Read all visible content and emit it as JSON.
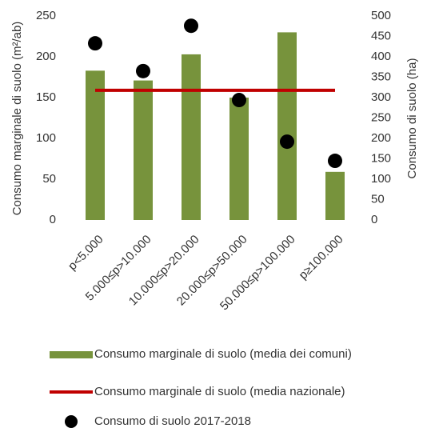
{
  "chart_data": {
    "type": "bar",
    "y_label": "Consumo marginale di suolo (m²/ab)",
    "y2_label": "Consumo di suolo (ha)",
    "categories": [
      "p<5.000",
      "5.000≤p>10.000",
      "10.000≤p>20.000",
      "20.000≤p>50.000",
      "50.000≤p>100.000",
      "p≥100.000"
    ],
    "series": [
      {
        "name": "Consumo marginale di suolo (media dei comuni)",
        "type": "bar",
        "color": "#77933c",
        "values": [
          183,
          171,
          203,
          150,
          230,
          59
        ]
      },
      {
        "name": "Consumo marginale di suolo (media nazionale)",
        "type": "line",
        "color": "#c00000",
        "values": [
          159,
          159,
          159,
          159,
          159,
          159
        ]
      },
      {
        "name": "Consumo di suolo 2017-2018",
        "type": "scatter",
        "color": "#000000",
        "axis": "y2",
        "values": [
          433,
          365,
          476,
          294,
          192,
          145
        ]
      }
    ],
    "ylim": [
      0,
      250
    ],
    "yticks": [
      0,
      50,
      100,
      150,
      200,
      250
    ],
    "y2lim": [
      0,
      500
    ],
    "y2ticks": [
      0,
      50,
      100,
      150,
      200,
      250,
      300,
      350,
      400,
      450,
      500
    ]
  }
}
